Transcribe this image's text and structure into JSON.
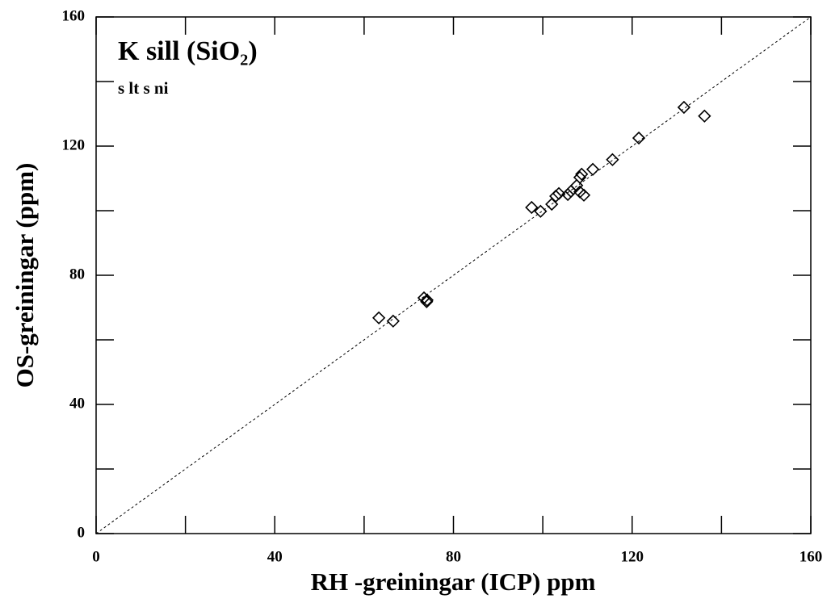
{
  "chart_data": {
    "type": "scatter",
    "title": "K sill (SiO₂)",
    "subtitle": "s lt s ni",
    "x_label": "RH -greiningar (ICP) ppm",
    "y_label": "OS-greiningar (ppm)",
    "xlim": [
      0,
      160
    ],
    "ylim": [
      0,
      160
    ],
    "xticks": [
      0,
      40,
      80,
      120,
      160
    ],
    "yticks": [
      0,
      40,
      80,
      120,
      160
    ],
    "xminor": [
      20,
      60,
      100,
      140
    ],
    "yminor": [
      20,
      60,
      100,
      140
    ],
    "identity_line": true,
    "color": "#000000",
    "x": [
      63.3,
      66.5,
      73.4,
      74.1,
      74.0,
      97.5,
      99.5,
      102.0,
      102.9,
      103.6,
      105.6,
      106.3,
      107.6,
      108.3,
      108.7,
      108.3,
      109.2,
      111.2,
      115.6,
      121.5,
      131.6,
      136.2
    ],
    "values": [
      66.8,
      65.8,
      73.0,
      72.3,
      71.8,
      101.0,
      99.8,
      102.0,
      104.5,
      105.3,
      105.0,
      106.0,
      107.8,
      110.3,
      111.3,
      105.8,
      104.8,
      112.8,
      115.8,
      122.5,
      132.0,
      129.3
    ]
  }
}
